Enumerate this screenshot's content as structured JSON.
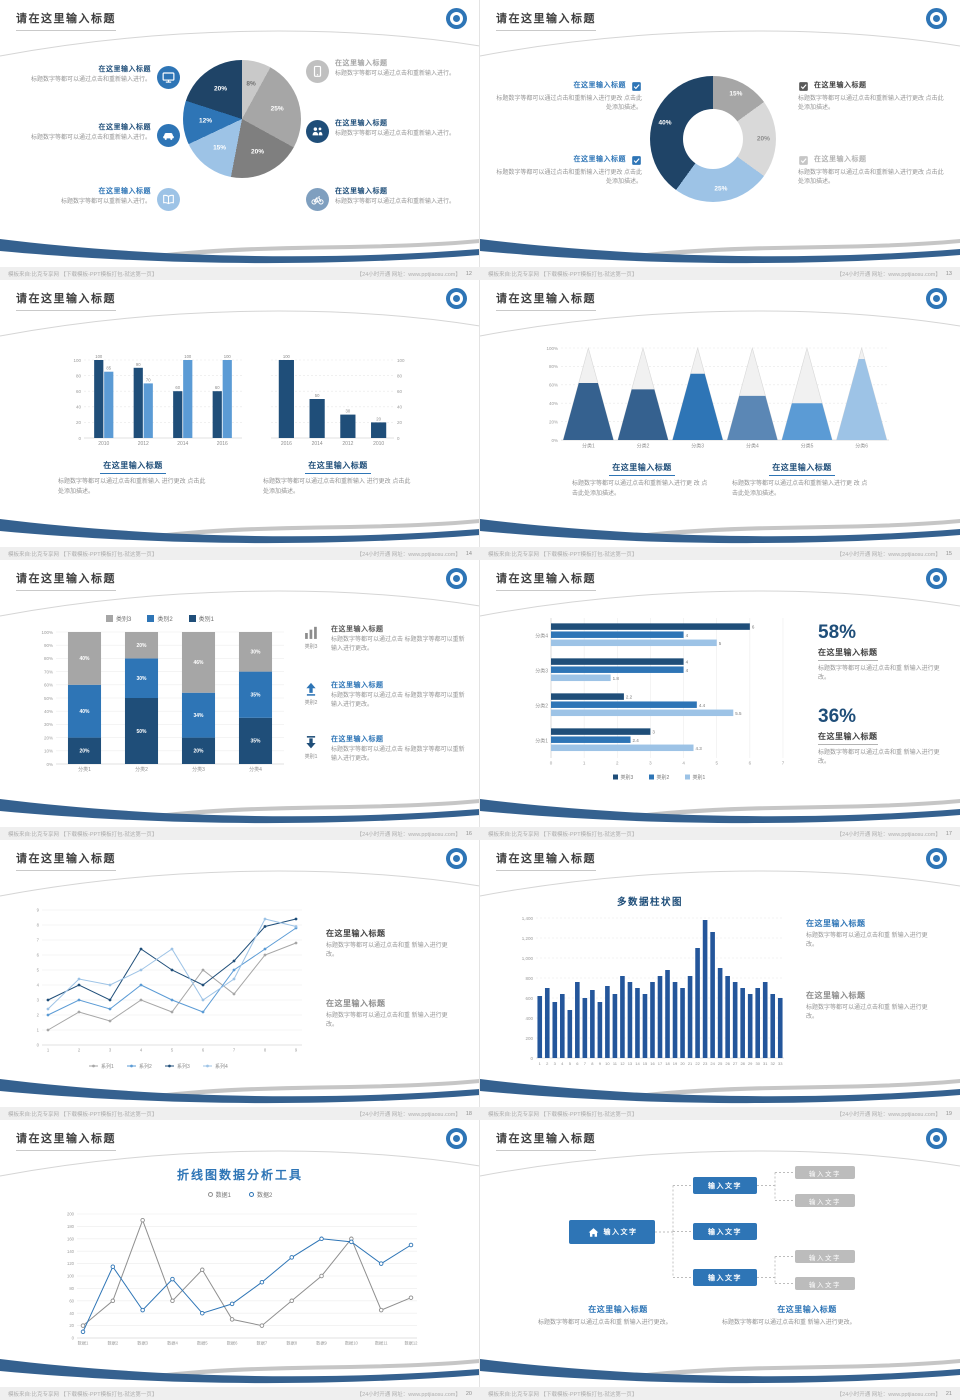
{
  "common": {
    "slide_title": "请在这里输入标题",
    "footer_left": "模板来自:比克专享网 【下载模板-PPT模板打包-就这第一页】",
    "footer_right": "【24小时开通 网址：www.pptjiaosu.com】"
  },
  "colors": {
    "navy": "#1f4467",
    "deep_blue": "#1f4e79",
    "blue": "#2e75b6",
    "light_blue": "#9dc3e6",
    "gray": "#a6a6a6",
    "light_gray": "#d9d9d9",
    "swoosh_blue": "#35618f"
  },
  "slides": [
    {
      "page_no": "12",
      "chart_data": {
        "type": "pie",
        "slices": [
          {
            "value": 8,
            "color": "#c9c9c9",
            "label_color": "#6f6f6f"
          },
          {
            "value": 25,
            "color": "#a6a6a6",
            "label_color": "#ffffff"
          },
          {
            "value": 20,
            "color": "#7f7f7f",
            "label_color": "#ffffff"
          },
          {
            "value": 15,
            "color": "#9dc3e6",
            "label_color": "#ffffff"
          },
          {
            "value": 12,
            "color": "#2e75b6",
            "label_color": "#ffffff"
          },
          {
            "value": 20,
            "color": "#1f4467",
            "label_color": "#ffffff"
          }
        ]
      },
      "items_left": [
        {
          "icon": "monitor-icon",
          "icon_color": "#2e75b6",
          "title": "在这里输入标题",
          "title_color": "#1f4e79",
          "text": "标题数字等都可以通过点击和重新输入进行。"
        },
        {
          "icon": "car-icon",
          "icon_color": "#2e75b6",
          "title": "在这里输入标题",
          "title_color": "#1f4e79",
          "text": "标题数字等都可以通过点击和重新输入进行。"
        },
        {
          "icon": "book-icon",
          "icon_color": "#9dc3e6",
          "title": "在这里输入标题",
          "title_color": "#2e75b6",
          "text": "标题数字等都可以重新输入进行。"
        }
      ],
      "items_right": [
        {
          "icon": "phone-icon",
          "icon_color": "#c0c0c0",
          "title": "在这里输入标题",
          "title_color": "#a6a6a6",
          "text": "标题数字等都可以通过点击和重新输入进行。"
        },
        {
          "icon": "people-icon",
          "icon_color": "#1f4e79",
          "title": "在这里输入标题",
          "title_color": "#1f4e79",
          "text": "标题数字等都可以通过点击和重新输入进行。"
        },
        {
          "icon": "bicycle-icon",
          "icon_color": "#7f9fbf",
          "title": "在这里输入标题",
          "title_color": "#1f4e79",
          "text": "标题数字等都可以通过点击和重新输入进行。"
        }
      ]
    },
    {
      "page_no": "13",
      "chart_data": {
        "type": "donut",
        "slices": [
          {
            "value": 15,
            "color": "#a6a6a6",
            "label_color": "#ffffff"
          },
          {
            "value": 20,
            "color": "#d9d9d9",
            "label_color": "#8c8c8c"
          },
          {
            "value": 25,
            "color": "#9dc3e6",
            "label_color": "#ffffff"
          },
          {
            "value": 40,
            "color": "#1f4467",
            "label_color": "#ffffff"
          }
        ]
      },
      "items_left": [
        {
          "title": "在这里输入标题",
          "title_color": "#2e75b6",
          "check_color": "#2e75b6",
          "text": "标题数字等都可以通过点击和重新输入进行更改 点击此处添加描述。"
        },
        {
          "title": "在这里输入标题",
          "title_color": "#2e75b6",
          "check_color": "#2e75b6",
          "text": "标题数字等都可以通过点击和重新输入进行更改 点击此处添加描述。"
        }
      ],
      "items_right": [
        {
          "title": "在这里输入标题",
          "title_color": "#404040",
          "check_color": "#595959",
          "text": "标题数字等都可以通过点击和重新输入进行更改 点击此处添加描述。"
        },
        {
          "title": "在这里输入标题",
          "title_color": "#b3b3b3",
          "check_color": "#c6c6c6",
          "text": "标题数字等都可以通过点击和重新输入进行更改 点击此处添加描述。"
        }
      ]
    },
    {
      "page_no": "14",
      "chart_data": [
        {
          "type": "bar",
          "categories": [
            "2010",
            "2012",
            "2014",
            "2016"
          ],
          "series": [
            {
              "color": "#1f4e79",
              "values": [
                100,
                90,
                60,
                60
              ]
            },
            {
              "color": "#5b9bd5",
              "values": [
                85,
                70,
                100,
                100
              ]
            }
          ],
          "ylim": [
            0,
            100
          ],
          "ystep": 20,
          "value_labels": true
        },
        {
          "type": "bar",
          "categories": [
            "2016",
            "2014",
            "2012",
            "2010"
          ],
          "series": [
            {
              "color": "#1f4e79",
              "values": [
                100,
                50,
                30,
                20
              ]
            }
          ],
          "ylim": [
            0,
            100
          ],
          "ystep": 20,
          "value_labels": true,
          "ylabels_right": true
        }
      ],
      "blocks": [
        {
          "title": "在这里输入标题",
          "text": "标题数字等都可以通过点击和重新输入 进行更改 点击此处添加描述。"
        },
        {
          "title": "在这里输入标题",
          "text": "标题数字等都可以通过点击和重新输入 进行更改 点击此处添加描述。"
        }
      ]
    },
    {
      "page_no": "15",
      "chart_data": {
        "type": "pyramid",
        "categories": [
          "分类1",
          "分类2",
          "分类3",
          "分类4",
          "分类5",
          "分类6"
        ],
        "values": [
          62,
          55,
          72,
          48,
          40,
          88
        ],
        "colors": [
          "#35618f",
          "#35618f",
          "#2e75b6",
          "#5b87b5",
          "#5b9bd5",
          "#9dc3e6"
        ],
        "ylim": [
          0,
          100
        ],
        "ystep": 20
      },
      "blocks": [
        {
          "title": "在这里输入标题",
          "text": "标题数字等都可以通过点击和重新输入进行更 改 点击此处添加描述。"
        },
        {
          "title": "在这里输入标题",
          "text": "标题数字等都可以通过点击和重新输入进行更 改 点击此处添加描述。"
        }
      ]
    },
    {
      "page_no": "16",
      "legend": [
        {
          "label": "类别3",
          "color": "#a6a6a6"
        },
        {
          "label": "类别2",
          "color": "#2e75b6"
        },
        {
          "label": "类别1",
          "color": "#1f4e79"
        }
      ],
      "chart_data": {
        "type": "stacked-bar",
        "categories": [
          "分类1",
          "分类2",
          "分类3",
          "分类4"
        ],
        "series": [
          {
            "name": "类别1",
            "color": "#1f4e79",
            "values": [
              20,
              50,
              20,
              35
            ]
          },
          {
            "name": "类别2",
            "color": "#2e75b6",
            "values": [
              40,
              30,
              34,
              35
            ]
          },
          {
            "name": "类别3",
            "color": "#a6a6a6",
            "values": [
              40,
              20,
              46,
              30
            ]
          }
        ],
        "ylim": [
          0,
          100
        ],
        "ystep": 10
      },
      "items": [
        {
          "icon": "bar-chart-icon",
          "icon_color": "#8c8c8c",
          "icon_label": "类别3",
          "title": "在这里输入标题",
          "title_color": "#595959",
          "text": "标题数字等都可以通过点击 标题数字等都可以重新输入进行更改。"
        },
        {
          "icon": "arrow-up-icon",
          "icon_color": "#2e75b6",
          "icon_label": "类别2",
          "title": "在这里输入标题",
          "title_color": "#2e75b6",
          "text": "标题数字等都可以通过点击 标题数字等都可以重新输入进行更改。"
        },
        {
          "icon": "arrow-down-icon",
          "icon_color": "#1f4e79",
          "icon_label": "类别1",
          "title": "在这里输入标题",
          "title_color": "#2e75b6",
          "text": "标题数字等都可以通过点击 标题数字等都可以重新输入进行更改。"
        }
      ]
    },
    {
      "page_no": "17",
      "chart_data": {
        "type": "hbar",
        "categories": [
          "分类4",
          "分类3",
          "分类2",
          "分类1"
        ],
        "series": [
          {
            "name": "类别3",
            "color": "#1f4e79",
            "values": [
              6,
              4,
              2.2,
              3
            ]
          },
          {
            "name": "类别2",
            "color": "#2e75b6",
            "values": [
              4,
              4,
              4.4,
              2.4
            ]
          },
          {
            "name": "类别1",
            "color": "#9dc3e6",
            "values": [
              5,
              1.8,
              5.5,
              4.3
            ]
          }
        ],
        "xlim": [
          0,
          7
        ],
        "xstep": 1,
        "value_labels": true,
        "legend": "bottom"
      },
      "stats": [
        {
          "value": "58%",
          "title": "在这里输入标题",
          "text": "标题数字等都可以通过点击和重 新输入进行更改。"
        },
        {
          "value": "36%",
          "title": "在这里输入标题",
          "text": "标题数字等都可以通过点击和重 新输入进行更改。"
        }
      ]
    },
    {
      "page_no": "18",
      "chart_data": {
        "type": "line",
        "x": [
          "1",
          "2",
          "3",
          "4",
          "5",
          "6",
          "7",
          "8",
          "9"
        ],
        "ylim": [
          0,
          9
        ],
        "ystep": 1,
        "legend": "bottom",
        "series": [
          {
            "name": "系列1",
            "color": "#a6a6a6",
            "values": [
              1,
              2.2,
              1.6,
              3,
              2.2,
              5,
              3.4,
              6,
              6.8
            ]
          },
          {
            "name": "系列2",
            "color": "#5b9bd5",
            "values": [
              2,
              3,
              2.4,
              4,
              3,
              2.2,
              5,
              6.4,
              7.8
            ]
          },
          {
            "name": "系列3",
            "color": "#1f4e79",
            "values": [
              3,
              4,
              3,
              6.4,
              5,
              4,
              5.6,
              7.9,
              8.4
            ]
          },
          {
            "name": "系列4",
            "color": "#9dc3e6",
            "values": [
              2.4,
              4.4,
              4,
              5,
              6.4,
              3,
              4.4,
              8.4,
              7.9
            ]
          }
        ]
      },
      "blocks": [
        {
          "title": "在这里输入标题",
          "title_color": "#404040",
          "text": "标题数字等都可以通过点击和重 新输入进行更改。"
        },
        {
          "title": "在这里输入标题",
          "title_color": "#8c8c8c",
          "text": "标题数字等都可以通过点击和重 新输入进行更改。"
        }
      ]
    },
    {
      "page_no": "19",
      "chart_title": "多数据柱状图",
      "chart_data": {
        "type": "bar",
        "categories": [
          "1",
          "2",
          "3",
          "4",
          "5",
          "6",
          "7",
          "8",
          "9",
          "10",
          "11",
          "12",
          "13",
          "14",
          "15",
          "16",
          "17",
          "18",
          "19",
          "20",
          "21",
          "22",
          "23",
          "24",
          "25",
          "26",
          "27",
          "28",
          "29",
          "30",
          "31",
          "32",
          "33"
        ],
        "series": [
          {
            "color": "#24569b",
            "values": [
              620,
              700,
              560,
              640,
              480,
              760,
              600,
              680,
              560,
              720,
              640,
              820,
              760,
              700,
              640,
              760,
              820,
              880,
              760,
              700,
              820,
              1100,
              1380,
              1260,
              900,
              820,
              760,
              700,
              640,
              700,
              760,
              640,
              600
            ]
          }
        ],
        "ylim": [
          0,
          1400
        ],
        "ystep": 200,
        "yfmt": true,
        "xfont": 4
      },
      "blocks": [
        {
          "title": "在这里输入标题",
          "title_color": "#2e75b6",
          "text": "标题数字等都可以通过点击和重 新输入进行更改。"
        },
        {
          "title": "在这里输入标题",
          "title_color": "#8c8c8c",
          "text": "标题数字等都可以通过点击和重 新输入进行更改。"
        }
      ]
    },
    {
      "page_no": "20",
      "chart_title": "折线图数据分析工具",
      "chart_data": {
        "type": "line",
        "x": [
          "数据1",
          "数据2",
          "数据3",
          "数据4",
          "数据5",
          "数据6",
          "数据7",
          "数据8",
          "数据9",
          "数据10",
          "数据11",
          "数据12"
        ],
        "ylim": [
          0,
          200
        ],
        "ystep": 20,
        "legend": "top",
        "marker": "hollow",
        "series": [
          {
            "name": "数据1",
            "color": "#8f8f8f",
            "values": [
              20,
              60,
              190,
              60,
              110,
              30,
              20,
              60,
              100,
              160,
              45,
              65
            ]
          },
          {
            "name": "数据2",
            "color": "#2e75b6",
            "values": [
              10,
              115,
              45,
              95,
              40,
              55,
              90,
              130,
              160,
              155,
              120,
              150
            ]
          }
        ]
      }
    },
    {
      "page_no": "21",
      "diagram": {
        "root": "输入文字",
        "children": [
          "输入文字",
          "输入文字",
          "输入文字"
        ],
        "leaves": [
          "输入文字",
          "输入文字",
          "输入文字",
          "输入文字"
        ]
      },
      "blocks": [
        {
          "title": "在这里输入标题",
          "text": "标题数字等都可以通过点击和重 新输入进行更改。"
        },
        {
          "title": "在这里输入标题",
          "text": "标题数字等都可以通过点击和重 新输入进行更改。"
        }
      ]
    }
  ]
}
